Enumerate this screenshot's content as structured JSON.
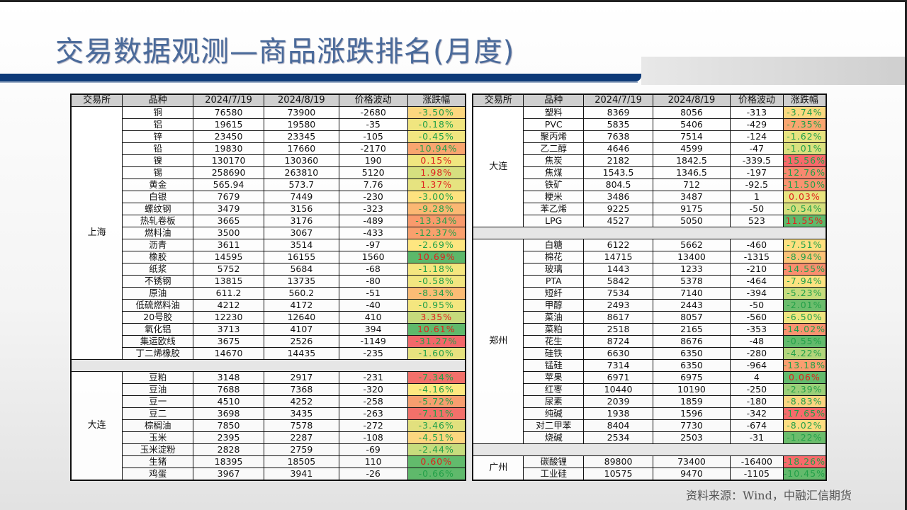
{
  "title": "交易数据观测—商品涨跌排名(月度)",
  "source": "资料来源：Wind，中融汇信期货",
  "colors": {
    "up_text": "#e0201c",
    "down_text": "#22a048",
    "header_bg": "#cfcfcf",
    "band": "#0d3a78",
    "title": "#4a6a9a"
  },
  "headers": [
    "交易所",
    "品种",
    "2024/7/19",
    "2024/8/19",
    "价格波动",
    "涨跌幅"
  ],
  "left_table": [
    {
      "exchange": "上海",
      "rows": [
        {
          "name": "铜",
          "d1": "76580",
          "d2": "73900",
          "chg": "-2680",
          "pct": "-3.50%",
          "bg": "#fcd77f"
        },
        {
          "name": "铝",
          "d1": "19615",
          "d2": "19580",
          "chg": "-35",
          "pct": "-0.18%",
          "bg": "#f0e57f"
        },
        {
          "name": "锌",
          "d1": "23450",
          "d2": "23345",
          "chg": "-105",
          "pct": "-0.45%",
          "bg": "#f2e680"
        },
        {
          "name": "铅",
          "d1": "19830",
          "d2": "17660",
          "chg": "-2170",
          "pct": "-10.94%",
          "bg": "#f9a56f"
        },
        {
          "name": "镍",
          "d1": "130170",
          "d2": "130360",
          "chg": "190",
          "pct": "0.15%",
          "bg": "#f0e67f"
        },
        {
          "name": "锡",
          "d1": "258690",
          "d2": "263810",
          "chg": "5120",
          "pct": "1.98%",
          "bg": "#d6df7f"
        },
        {
          "name": "黄金",
          "d1": "565.94",
          "d2": "573.7",
          "chg": "7.76",
          "pct": "1.37%",
          "bg": "#e6e380"
        },
        {
          "name": "白银",
          "d1": "7679",
          "d2": "7449",
          "chg": "-230",
          "pct": "-3.00%",
          "bg": "#fde27f"
        },
        {
          "name": "螺纹钢",
          "d1": "3479",
          "d2": "3156",
          "chg": "-323",
          "pct": "-9.28%",
          "bg": "#fbb873"
        },
        {
          "name": "热轧卷板",
          "d1": "3665",
          "d2": "3176",
          "chg": "-489",
          "pct": "-13.34%",
          "bg": "#f99a6c"
        },
        {
          "name": "燃料油",
          "d1": "3500",
          "d2": "3067",
          "chg": "-433",
          "pct": "-12.37%",
          "bg": "#f9a06d"
        },
        {
          "name": "沥青",
          "d1": "3611",
          "d2": "3514",
          "chg": "-97",
          "pct": "-2.69%",
          "bg": "#fee680"
        },
        {
          "name": "橡胶",
          "d1": "14595",
          "d2": "16155",
          "chg": "1560",
          "pct": "10.69%",
          "bg": "#5cb86a"
        },
        {
          "name": "纸浆",
          "d1": "5752",
          "d2": "5684",
          "chg": "-68",
          "pct": "-1.18%",
          "bg": "#f5e67f"
        },
        {
          "name": "不锈钢",
          "d1": "13815",
          "d2": "13735",
          "chg": "-80",
          "pct": "-0.58%",
          "bg": "#f2e680"
        },
        {
          "name": "原油",
          "d1": "611.2",
          "d2": "560.2",
          "chg": "-51",
          "pct": "-8.34%",
          "bg": "#fbbc75"
        },
        {
          "name": "低硫燃料油",
          "d1": "4212",
          "d2": "4172",
          "chg": "-40",
          "pct": "-0.95%",
          "bg": "#f4e67f"
        },
        {
          "name": "20号胶",
          "d1": "12230",
          "d2": "12640",
          "chg": "410",
          "pct": "3.35%",
          "bg": "#c6da7c"
        },
        {
          "name": "氧化铝",
          "d1": "3713",
          "d2": "4107",
          "chg": "394",
          "pct": "10.61%",
          "bg": "#5fb96b"
        },
        {
          "name": "集运欧线",
          "d1": "3675",
          "d2": "2526",
          "chg": "-1149",
          "pct": "-31.27%",
          "bg": "#f2686a"
        },
        {
          "name": "丁二烯橡胶",
          "d1": "14670",
          "d2": "14435",
          "chg": "-235",
          "pct": "-1.60%",
          "bg": "#e7e27f"
        }
      ]
    },
    {
      "exchange": "大连",
      "rows": [
        {
          "name": "豆粕",
          "d1": "3148",
          "d2": "2917",
          "chg": "-231",
          "pct": "-7.34%",
          "bg": "#f2706a"
        },
        {
          "name": "豆油",
          "d1": "7688",
          "d2": "7368",
          "chg": "-320",
          "pct": "-4.16%",
          "bg": "#fee880"
        },
        {
          "name": "豆一",
          "d1": "4510",
          "d2": "4252",
          "chg": "-258",
          "pct": "-5.72%",
          "bg": "#f79e6f"
        },
        {
          "name": "豆二",
          "d1": "3698",
          "d2": "3435",
          "chg": "-263",
          "pct": "-7.11%",
          "bg": "#f2706a"
        },
        {
          "name": "棕榈油",
          "d1": "7850",
          "d2": "7578",
          "chg": "-272",
          "pct": "-3.46%",
          "bg": "#e2e07e"
        },
        {
          "name": "玉米",
          "d1": "2395",
          "d2": "2287",
          "chg": "-108",
          "pct": "-4.51%",
          "bg": "#fcd67f"
        },
        {
          "name": "玉米淀粉",
          "d1": "2828",
          "d2": "2759",
          "chg": "-69",
          "pct": "-2.44%",
          "bg": "#c7dc7d"
        },
        {
          "name": "生猪",
          "d1": "18395",
          "d2": "18505",
          "chg": "110",
          "pct": "0.60%",
          "bg": "#62bb6c"
        },
        {
          "name": "鸡蛋",
          "d1": "3967",
          "d2": "3941",
          "chg": "-26",
          "pct": "-0.66%",
          "bg": "#5fb96b"
        }
      ]
    }
  ],
  "right_table": [
    {
      "exchange": "大连",
      "rows": [
        {
          "name": "塑料",
          "d1": "8369",
          "d2": "8056",
          "chg": "-313",
          "pct": "-3.74%",
          "bg": "#fcd980"
        },
        {
          "name": "PVC",
          "d1": "5835",
          "d2": "5406",
          "chg": "-429",
          "pct": "-7.35%",
          "bg": "#f9a570"
        },
        {
          "name": "聚丙烯",
          "d1": "7638",
          "d2": "7514",
          "chg": "-124",
          "pct": "-1.62%",
          "bg": "#e8e380"
        },
        {
          "name": "乙二醇",
          "d1": "4646",
          "d2": "4599",
          "chg": "-47",
          "pct": "-1.01%",
          "bg": "#dbe07f"
        },
        {
          "name": "焦炭",
          "d1": "2182",
          "d2": "1842.5",
          "chg": "-339.5",
          "pct": "-15.56%",
          "bg": "#f8696b"
        },
        {
          "name": "焦煤",
          "d1": "1543.5",
          "d2": "1346.5",
          "chg": "-197",
          "pct": "-12.76%",
          "bg": "#fa8870"
        },
        {
          "name": "铁矿",
          "d1": "804.5",
          "d2": "712",
          "chg": "-92.5",
          "pct": "-11.50%",
          "bg": "#f99370"
        },
        {
          "name": "粳米",
          "d1": "3486",
          "d2": "3487",
          "chg": "1",
          "pct": "0.03%",
          "bg": "#e9e480"
        },
        {
          "name": "苯乙烯",
          "d1": "9225",
          "d2": "9175",
          "chg": "-50",
          "pct": "-0.54%",
          "bg": "#d5df7e"
        },
        {
          "name": "LPG",
          "d1": "4527",
          "d2": "5050",
          "chg": "523",
          "pct": "11.55%",
          "bg": "#5fb96b"
        }
      ]
    },
    {
      "exchange": "郑州",
      "rows": [
        {
          "name": "白糖",
          "d1": "6122",
          "d2": "5662",
          "chg": "-460",
          "pct": "-7.51%",
          "bg": "#fee080"
        },
        {
          "name": "棉花",
          "d1": "14715",
          "d2": "13400",
          "chg": "-1315",
          "pct": "-8.94%",
          "bg": "#fcc278"
        },
        {
          "name": "玻璃",
          "d1": "1443",
          "d2": "1233",
          "chg": "-210",
          "pct": "-14.55%",
          "bg": "#f98e6f"
        },
        {
          "name": "PTA",
          "d1": "5842",
          "d2": "5378",
          "chg": "-464",
          "pct": "-7.94%",
          "bg": "#fde281"
        },
        {
          "name": "短纤",
          "d1": "7534",
          "d2": "7140",
          "chg": "-394",
          "pct": "-5.23%",
          "bg": "#c7dc7d"
        },
        {
          "name": "甲醇",
          "d1": "2493",
          "d2": "2443",
          "chg": "-50",
          "pct": "-2.01%",
          "bg": "#6cbd6d"
        },
        {
          "name": "菜油",
          "d1": "8617",
          "d2": "8057",
          "chg": "-560",
          "pct": "-6.50%",
          "bg": "#f0e580"
        },
        {
          "name": "菜粕",
          "d1": "2518",
          "d2": "2165",
          "chg": "-353",
          "pct": "-14.02%",
          "bg": "#fa9270"
        },
        {
          "name": "花生",
          "d1": "8724",
          "d2": "8676",
          "chg": "-48",
          "pct": "-0.55%",
          "bg": "#63ba6c"
        },
        {
          "name": "硅铁",
          "d1": "6630",
          "d2": "6350",
          "chg": "-280",
          "pct": "-4.22%",
          "bg": "#b3d57b"
        },
        {
          "name": "锰硅",
          "d1": "7314",
          "d2": "6350",
          "chg": "-964",
          "pct": "-13.18%",
          "bg": "#fa9e70"
        },
        {
          "name": "苹果",
          "d1": "6971",
          "d2": "6975",
          "chg": "4",
          "pct": "0.06%",
          "bg": "#63ba6c"
        },
        {
          "name": "红枣",
          "d1": "10440",
          "d2": "10190",
          "chg": "-250",
          "pct": "-2.39%",
          "bg": "#9ccf78"
        },
        {
          "name": "尿素",
          "d1": "2039",
          "d2": "1859",
          "chg": "-180",
          "pct": "-8.83%",
          "bg": "#fcd480"
        },
        {
          "name": "纯碱",
          "d1": "1938",
          "d2": "1596",
          "chg": "-342",
          "pct": "-17.65%",
          "bg": "#f8696b"
        },
        {
          "name": "对二甲苯",
          "d1": "8404",
          "d2": "7730",
          "chg": "-674",
          "pct": "-8.02%",
          "bg": "#fedd81"
        },
        {
          "name": "烧碱",
          "d1": "2534",
          "d2": "2503",
          "chg": "-31",
          "pct": "-1.22%",
          "bg": "#6bbd6c"
        }
      ]
    },
    {
      "exchange": "广州",
      "rows": [
        {
          "name": "碳酸锂",
          "d1": "89800",
          "d2": "73400",
          "chg": "-16400",
          "pct": "-18.26%",
          "bg": "#f8696b"
        },
        {
          "name": "工业硅",
          "d1": "10575",
          "d2": "9470",
          "chg": "-1105",
          "pct": "-10.45%",
          "bg": "#63ba6c"
        }
      ]
    }
  ]
}
